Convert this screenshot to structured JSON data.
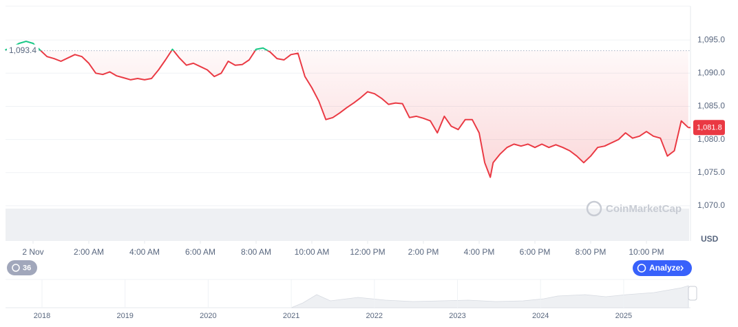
{
  "chart_data": {
    "type": "line",
    "x": [
      -1,
      -0.75,
      -0.5,
      -0.25,
      0,
      0.25,
      0.5,
      0.75,
      1,
      1.25,
      1.5,
      1.75,
      2,
      2.25,
      2.5,
      2.75,
      3,
      3.25,
      3.5,
      3.75,
      4,
      4.25,
      4.5,
      4.75,
      5,
      5.25,
      5.5,
      5.75,
      6,
      6.25,
      6.5,
      6.75,
      7,
      7.25,
      7.5,
      7.75,
      8,
      8.25,
      8.5,
      8.75,
      9,
      9.25,
      9.5,
      9.75,
      10,
      10.25,
      10.5,
      10.75,
      11,
      11.25,
      11.5,
      11.75,
      12,
      12.25,
      12.5,
      12.75,
      13,
      13.25,
      13.5,
      13.75,
      14,
      14.25,
      14.5,
      14.75,
      15,
      15.25,
      15.5,
      15.75,
      16,
      16.2,
      16.4,
      16.5,
      16.75,
      17,
      17.25,
      17.5,
      17.75,
      18,
      18.25,
      18.5,
      18.75,
      19,
      19.25,
      19.5,
      19.75,
      20,
      20.25,
      20.5,
      20.75,
      21,
      21.25,
      21.5,
      21.75,
      22,
      22.25,
      22.5,
      22.75,
      23,
      23.25,
      23.5
    ],
    "values": [
      1093.5,
      1093.9,
      1094.5,
      1094.8,
      1094.5,
      1093.5,
      1092.5,
      1092.2,
      1091.8,
      1092.3,
      1092.8,
      1092.5,
      1091.5,
      1090.0,
      1089.8,
      1090.2,
      1089.6,
      1089.3,
      1089.0,
      1089.2,
      1089.0,
      1089.2,
      1090.5,
      1092.0,
      1093.6,
      1092.3,
      1091.2,
      1091.5,
      1091.0,
      1090.5,
      1089.5,
      1090.0,
      1091.8,
      1091.2,
      1091.3,
      1092.0,
      1093.6,
      1093.8,
      1093.2,
      1092.2,
      1092.0,
      1092.8,
      1093.0,
      1089.5,
      1087.8,
      1085.8,
      1083.0,
      1083.3,
      1084.0,
      1084.8,
      1085.5,
      1086.3,
      1087.2,
      1086.9,
      1086.2,
      1085.3,
      1085.5,
      1085.4,
      1083.3,
      1083.5,
      1083.2,
      1082.8,
      1081.0,
      1083.5,
      1082.0,
      1081.5,
      1083.0,
      1083.0,
      1081.0,
      1076.5,
      1074.3,
      1076.5,
      1077.8,
      1078.8,
      1079.3,
      1079.0,
      1079.3,
      1078.8,
      1079.3,
      1078.8,
      1079.2,
      1078.8,
      1078.3,
      1077.5,
      1076.5,
      1077.5,
      1078.8,
      1079.0,
      1079.5,
      1080.0,
      1081.0,
      1080.2,
      1080.5,
      1081.2,
      1080.5,
      1080.2,
      1077.5,
      1078.3,
      1082.8,
      1081.8
    ],
    "xlim": [
      -1,
      23.58
    ],
    "xticks": [
      {
        "value": 0,
        "label": "2 Nov"
      },
      {
        "value": 2,
        "label": "2:00 AM"
      },
      {
        "value": 4,
        "label": "4:00 AM"
      },
      {
        "value": 6,
        "label": "6:00 AM"
      },
      {
        "value": 8,
        "label": "8:00 AM"
      },
      {
        "value": 10,
        "label": "10:00 AM"
      },
      {
        "value": 12,
        "label": "12:00 PM"
      },
      {
        "value": 14,
        "label": "2:00 PM"
      },
      {
        "value": 16,
        "label": "4:00 PM"
      },
      {
        "value": 18,
        "label": "6:00 PM"
      },
      {
        "value": 20,
        "label": "8:00 PM"
      },
      {
        "value": 22,
        "label": "10:00 PM"
      }
    ],
    "ylim": [
      1064.8,
      1100
    ],
    "yticks": [
      {
        "value": 1070,
        "label": "1,070.0"
      },
      {
        "value": 1075,
        "label": "1,075.0"
      },
      {
        "value": 1080,
        "label": "1,080.0"
      },
      {
        "value": 1085,
        "label": "1,085.0"
      },
      {
        "value": 1090,
        "label": "1,090.0"
      },
      {
        "value": 1095,
        "label": "1,095.0"
      }
    ],
    "grid": true,
    "up_color": "#16c784",
    "down_color": "#ea3943",
    "baseline": {
      "value": 1093.4,
      "label": "1,093.4"
    },
    "last_price": {
      "value": 1081.8,
      "label": "1,081.8"
    },
    "currency": "USD",
    "watermark": "CoinMarketCap"
  },
  "controls": {
    "count_badge": "36",
    "analyze_button": "Analyze"
  },
  "navigator": {
    "years": [
      "2018",
      "2019",
      "2020",
      "2021",
      "2022",
      "2023",
      "2024",
      "2025"
    ]
  }
}
